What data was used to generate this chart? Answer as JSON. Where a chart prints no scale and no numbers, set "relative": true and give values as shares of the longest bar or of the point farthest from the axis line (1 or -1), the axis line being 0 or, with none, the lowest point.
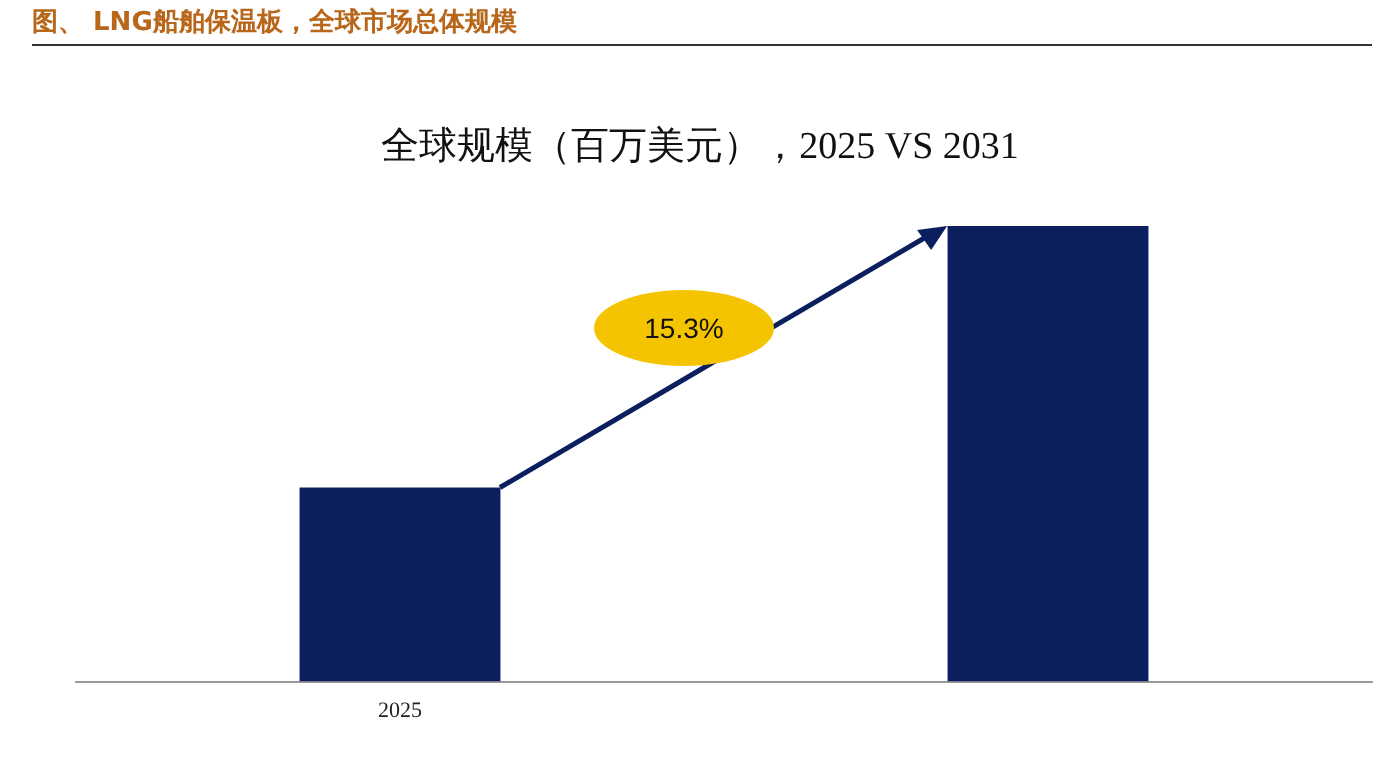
{
  "chart_data": {
    "type": "bar",
    "title": "图、 LNG船舶保温板，全球市场总体规模",
    "subtitle": "全球规模（百万美元），2025 VS 2031",
    "categories": [
      "2025",
      null
    ],
    "values": [
      0.426,
      1
    ],
    "color": "#0b1f5e",
    "relative": true,
    "grid": false,
    "legend": false,
    "annotations": [
      "15.3%"
    ]
  }
}
